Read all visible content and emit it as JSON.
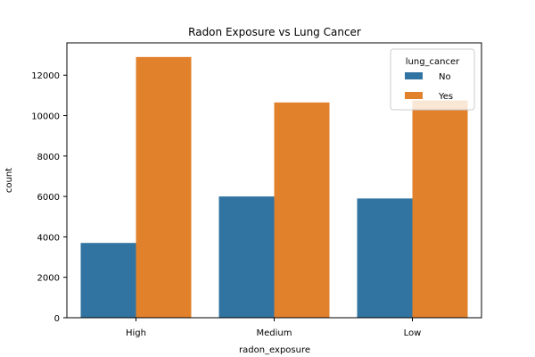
{
  "chart_data": {
    "type": "bar",
    "title": "Radon Exposure vs Lung Cancer",
    "xlabel": "radon_exposure",
    "ylabel": "count",
    "categories": [
      "High",
      "Medium",
      "Low"
    ],
    "series": [
      {
        "name": "No",
        "color": "#3274a1",
        "values": [
          3700,
          6000,
          5900
        ]
      },
      {
        "name": "Yes",
        "color": "#e1812c",
        "values": [
          12900,
          10650,
          10750
        ]
      }
    ],
    "ylim": [
      0,
      13600
    ],
    "yticks": [
      0,
      2000,
      4000,
      6000,
      8000,
      10000,
      12000
    ],
    "ytick_labels": [
      "0",
      "2000",
      "4000",
      "6000",
      "8000",
      "10000",
      "12000"
    ],
    "legend": {
      "title": "lung_cancer",
      "placement": "top-right"
    },
    "grid": false
  }
}
